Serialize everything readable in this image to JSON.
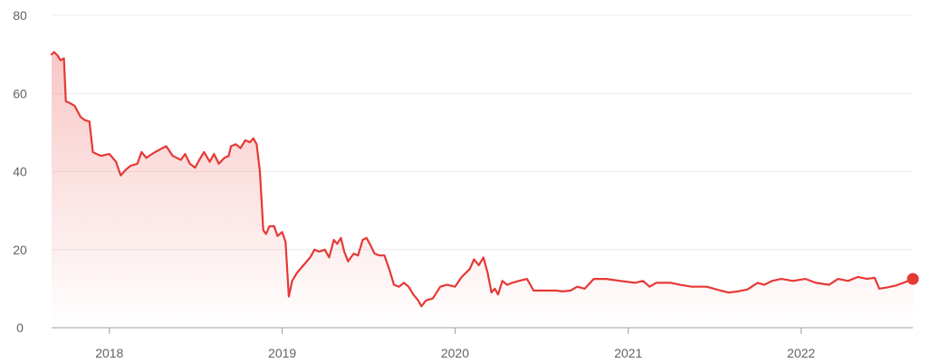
{
  "chart_data": {
    "type": "area",
    "title": "",
    "xlabel": "",
    "ylabel": "",
    "ylim": [
      0,
      80
    ],
    "y_ticks": [
      0,
      20,
      40,
      60,
      80
    ],
    "x_range": [
      "2017-09-01",
      "2022-08-25"
    ],
    "x_ticks": [
      {
        "label": "2018",
        "date": "2018-01-01"
      },
      {
        "label": "2019",
        "date": "2019-01-01"
      },
      {
        "label": "2020",
        "date": "2020-01-01"
      },
      {
        "label": "2021",
        "date": "2021-01-01"
      },
      {
        "label": "2022",
        "date": "2022-01-01"
      }
    ],
    "grid": true,
    "legend": "none",
    "colors": {
      "line": "#e53935",
      "fill_top": "#e53935",
      "grid": "#ececec",
      "axis": "#9aa0a6",
      "text": "#5f6368"
    },
    "series": [
      {
        "end_marker": true,
        "points": [
          [
            "2017-09-01",
            70.0
          ],
          [
            "2017-09-06",
            70.6
          ],
          [
            "2017-09-13",
            69.8
          ],
          [
            "2017-09-20",
            68.5
          ],
          [
            "2017-09-27",
            69.0
          ],
          [
            "2017-10-01",
            58.0
          ],
          [
            "2017-10-10",
            57.5
          ],
          [
            "2017-10-20",
            56.8
          ],
          [
            "2017-11-01",
            54.0
          ],
          [
            "2017-11-10",
            53.2
          ],
          [
            "2017-11-20",
            52.8
          ],
          [
            "2017-11-27",
            45.0
          ],
          [
            "2017-12-05",
            44.5
          ],
          [
            "2017-12-15",
            44.0
          ],
          [
            "2018-01-01",
            44.5
          ],
          [
            "2018-01-15",
            42.5
          ],
          [
            "2018-01-25",
            39.0
          ],
          [
            "2018-02-05",
            40.5
          ],
          [
            "2018-02-15",
            41.5
          ],
          [
            "2018-03-01",
            42.0
          ],
          [
            "2018-03-10",
            45.0
          ],
          [
            "2018-03-20",
            43.5
          ],
          [
            "2018-04-01",
            44.5
          ],
          [
            "2018-04-15",
            45.5
          ],
          [
            "2018-05-01",
            46.5
          ],
          [
            "2018-05-15",
            44.0
          ],
          [
            "2018-06-01",
            43.0
          ],
          [
            "2018-06-10",
            44.5
          ],
          [
            "2018-06-20",
            42.0
          ],
          [
            "2018-07-01",
            41.0
          ],
          [
            "2018-07-10",
            43.0
          ],
          [
            "2018-07-20",
            45.0
          ],
          [
            "2018-08-01",
            42.5
          ],
          [
            "2018-08-10",
            44.5
          ],
          [
            "2018-08-20",
            42.0
          ],
          [
            "2018-09-01",
            43.5
          ],
          [
            "2018-09-10",
            44.0
          ],
          [
            "2018-09-15",
            46.5
          ],
          [
            "2018-09-25",
            47.0
          ],
          [
            "2018-10-05",
            46.0
          ],
          [
            "2018-10-15",
            48.0
          ],
          [
            "2018-10-25",
            47.5
          ],
          [
            "2018-11-01",
            48.5
          ],
          [
            "2018-11-08",
            47.0
          ],
          [
            "2018-11-15",
            40.0
          ],
          [
            "2018-11-22",
            25.0
          ],
          [
            "2018-11-28",
            24.0
          ],
          [
            "2018-12-05",
            26.0
          ],
          [
            "2018-12-15",
            26.0
          ],
          [
            "2018-12-22",
            23.5
          ],
          [
            "2019-01-01",
            24.5
          ],
          [
            "2019-01-08",
            22.0
          ],
          [
            "2019-01-15",
            8.0
          ],
          [
            "2019-01-22",
            12.0
          ],
          [
            "2019-02-01",
            14.0
          ],
          [
            "2019-02-15",
            16.0
          ],
          [
            "2019-03-01",
            18.0
          ],
          [
            "2019-03-10",
            20.0
          ],
          [
            "2019-03-20",
            19.5
          ],
          [
            "2019-04-01",
            20.0
          ],
          [
            "2019-04-10",
            18.0
          ],
          [
            "2019-04-20",
            22.5
          ],
          [
            "2019-04-27",
            21.5
          ],
          [
            "2019-05-05",
            23.0
          ],
          [
            "2019-05-12",
            19.5
          ],
          [
            "2019-05-20",
            17.0
          ],
          [
            "2019-06-01",
            19.0
          ],
          [
            "2019-06-10",
            18.5
          ],
          [
            "2019-06-20",
            22.5
          ],
          [
            "2019-06-28",
            23.0
          ],
          [
            "2019-07-05",
            21.5
          ],
          [
            "2019-07-15",
            19.0
          ],
          [
            "2019-07-25",
            18.5
          ],
          [
            "2019-08-05",
            18.5
          ],
          [
            "2019-08-15",
            15.0
          ],
          [
            "2019-08-25",
            11.0
          ],
          [
            "2019-09-05",
            10.5
          ],
          [
            "2019-09-15",
            11.5
          ],
          [
            "2019-09-25",
            10.5
          ],
          [
            "2019-10-05",
            8.5
          ],
          [
            "2019-10-15",
            7.0
          ],
          [
            "2019-10-22",
            5.5
          ],
          [
            "2019-11-01",
            7.0
          ],
          [
            "2019-11-15",
            7.5
          ],
          [
            "2019-12-01",
            10.5
          ],
          [
            "2019-12-15",
            11.0
          ],
          [
            "2020-01-01",
            10.5
          ],
          [
            "2020-01-15",
            13.0
          ],
          [
            "2020-02-01",
            15.0
          ],
          [
            "2020-02-10",
            17.5
          ],
          [
            "2020-02-20",
            16.0
          ],
          [
            "2020-03-01",
            18.0
          ],
          [
            "2020-03-10",
            14.0
          ],
          [
            "2020-03-18",
            9.0
          ],
          [
            "2020-03-25",
            10.0
          ],
          [
            "2020-04-01",
            8.5
          ],
          [
            "2020-04-10",
            12.0
          ],
          [
            "2020-04-20",
            11.0
          ],
          [
            "2020-05-01",
            11.5
          ],
          [
            "2020-05-15",
            12.0
          ],
          [
            "2020-06-01",
            12.5
          ],
          [
            "2020-06-15",
            9.5
          ],
          [
            "2020-07-01",
            9.5
          ],
          [
            "2020-08-01",
            9.5
          ],
          [
            "2020-08-15",
            9.3
          ],
          [
            "2020-09-01",
            9.5
          ],
          [
            "2020-09-15",
            10.5
          ],
          [
            "2020-10-01",
            10.0
          ],
          [
            "2020-10-20",
            12.5
          ],
          [
            "2020-11-15",
            12.5
          ],
          [
            "2020-12-15",
            12.0
          ],
          [
            "2021-01-15",
            11.5
          ],
          [
            "2021-02-01",
            12.0
          ],
          [
            "2021-02-15",
            10.5
          ],
          [
            "2021-03-01",
            11.5
          ],
          [
            "2021-04-01",
            11.5
          ],
          [
            "2021-04-20",
            11.0
          ],
          [
            "2021-05-15",
            10.5
          ],
          [
            "2021-06-15",
            10.5
          ],
          [
            "2021-07-01",
            10.0
          ],
          [
            "2021-07-15",
            9.5
          ],
          [
            "2021-08-01",
            9.0
          ],
          [
            "2021-08-20",
            9.3
          ],
          [
            "2021-09-10",
            9.8
          ],
          [
            "2021-10-01",
            11.5
          ],
          [
            "2021-10-15",
            11.0
          ],
          [
            "2021-11-01",
            12.0
          ],
          [
            "2021-11-20",
            12.5
          ],
          [
            "2021-12-15",
            12.0
          ],
          [
            "2022-01-10",
            12.5
          ],
          [
            "2022-02-01",
            11.5
          ],
          [
            "2022-03-01",
            11.0
          ],
          [
            "2022-03-20",
            12.5
          ],
          [
            "2022-04-10",
            12.0
          ],
          [
            "2022-05-01",
            13.0
          ],
          [
            "2022-05-20",
            12.5
          ],
          [
            "2022-06-05",
            12.8
          ],
          [
            "2022-06-15",
            10.0
          ],
          [
            "2022-07-01",
            10.3
          ],
          [
            "2022-07-20",
            10.8
          ],
          [
            "2022-08-05",
            11.5
          ],
          [
            "2022-08-15",
            12.0
          ],
          [
            "2022-08-25",
            12.5
          ]
        ]
      }
    ]
  }
}
